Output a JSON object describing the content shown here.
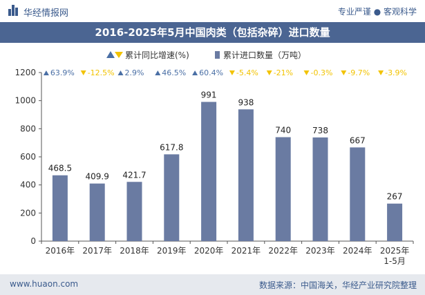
{
  "header": {
    "site_name": "华经情报网",
    "tagline": "专业严谨 ● 客观科学"
  },
  "footer": {
    "url": "www.huaon.com",
    "source": "数据来源：中国海关，华经产业研究院整理"
  },
  "colors": {
    "bar": "#6a7ba2",
    "up": "#4a6fa5",
    "down": "#f2c300",
    "title_bg": "#4b6592"
  },
  "chart_data": {
    "type": "bar",
    "title": "2016-2025年5月中国肉类（包括杂碎）进口数量",
    "categories": [
      "2016年",
      "2017年",
      "2018年",
      "2019年",
      "2020年",
      "2021年",
      "2022年",
      "2023年",
      "2024年",
      "2025年\n1-5月"
    ],
    "series": [
      {
        "name": "累计进口数量（万吨）",
        "values": [
          468.5,
          409.9,
          421.7,
          617.8,
          991,
          938,
          740,
          738,
          667,
          267
        ],
        "labels": [
          "468.5",
          "409.9",
          "421.7",
          "617.8",
          "991",
          "938",
          "740",
          "738",
          "667",
          "267"
        ]
      },
      {
        "name": "累计同比增速(%)",
        "values": [
          63.9,
          -12.5,
          2.9,
          46.5,
          60.4,
          -5.4,
          -21,
          -0.3,
          -9.7,
          -3.9
        ],
        "labels": [
          "63.9%",
          "-12.5%",
          "2.9%",
          "46.5%",
          "60.4%",
          "-5.4%",
          "-21%",
          "-0.3%",
          "-9.7%",
          "-3.9%"
        ]
      }
    ],
    "ylim": [
      0,
      1200
    ],
    "yticks": [
      0,
      200,
      400,
      600,
      800,
      1000,
      1200
    ],
    "legend_position": "top-center",
    "grid": false
  }
}
